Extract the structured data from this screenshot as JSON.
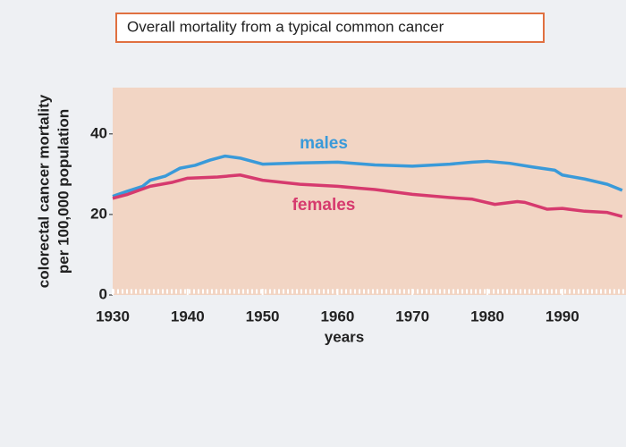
{
  "chart_data": {
    "type": "line",
    "title": "Overall mortality from a typical common cancer",
    "x_label": "years",
    "y_label": [
      "colorectal cancer mortality",
      "per 100,000 population"
    ],
    "xlim": [
      1930,
      1998.5
    ],
    "ylim": [
      0,
      51.5
    ],
    "xticks": [
      1930,
      1940,
      1950,
      1960,
      1970,
      1980,
      1990
    ],
    "yticks": [
      0,
      20,
      40
    ],
    "background": "#f2d5c4",
    "series": [
      {
        "name": "males",
        "color": "#3a9ad9",
        "x": [
          1930,
          1932,
          1934,
          1935,
          1937,
          1939,
          1941,
          1943,
          1945,
          1947,
          1949,
          1950,
          1955,
          1960,
          1965,
          1970,
          1975,
          1978,
          1980,
          1983,
          1986,
          1989,
          1990,
          1993,
          1996,
          1998
        ],
        "values": [
          24.5,
          25.8,
          27,
          28.5,
          29.5,
          31.5,
          32.2,
          33.5,
          34.5,
          34,
          33,
          32.5,
          32.8,
          33,
          32.3,
          32,
          32.5,
          33,
          33.2,
          32.7,
          31.8,
          31,
          29.8,
          28.8,
          27.5,
          26
        ]
      },
      {
        "name": "females",
        "color": "#d63a6e",
        "x": [
          1930,
          1932,
          1935,
          1938,
          1940,
          1944,
          1947,
          1950,
          1955,
          1960,
          1963,
          1965,
          1970,
          1975,
          1978,
          1981,
          1984,
          1985,
          1988,
          1990,
          1993,
          1996,
          1998
        ],
        "values": [
          24,
          25,
          27,
          28,
          29,
          29.3,
          29.8,
          28.5,
          27.5,
          27,
          26.5,
          26.2,
          25,
          24.2,
          23.8,
          22.5,
          23.2,
          23,
          21.3,
          21.5,
          20.8,
          20.5,
          19.5
        ]
      }
    ]
  }
}
